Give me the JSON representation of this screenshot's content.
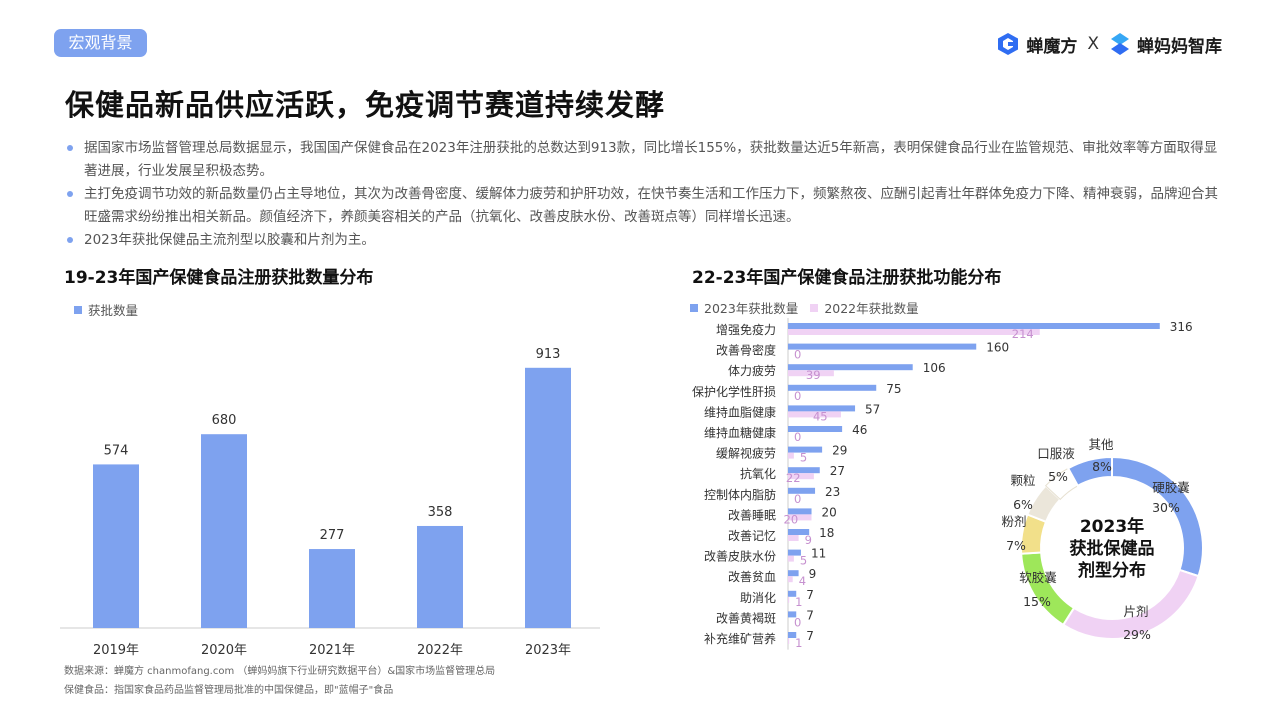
{
  "header": {
    "tag": "宏观背景",
    "logo_left": "蝉魔方",
    "logo_sep": "X",
    "logo_right": "蝉妈妈智库",
    "title": "保健品新品供应活跃，免疫调节赛道持续发酵"
  },
  "bullets": [
    "据国家市场监督管理总局数据显示，我国国产保健食品在2023年注册获批的总数达到913款，同比增长155%，获批数量达近5年新高，表明保健食品行业在监管规范、审批效率等方面取得显著进展，行业发展呈积极态势。",
    "主打免疫调节功效的新品数量仍占主导地位，其次为改善骨密度、缓解体力疲劳和护肝功效，在快节奏生活和工作压力下，频繁熬夜、应酬引起青壮年群体免疫力下降、精神衰弱，品牌迎合其旺盛需求纷纷推出相关新品。颜值经济下，养颜美容相关的产品（抗氧化、改善皮肤水份、改善斑点等）同样增长迅速。",
    "2023年获批保健品主流剂型以胶囊和片剂为主。"
  ],
  "colors": {
    "accent": "#7ea2ef",
    "pink": "#f0d2f4",
    "green": "#9ee75a",
    "yellow": "#f2e08a",
    "beige": "#ebe6da"
  },
  "chart_data": [
    {
      "type": "bar",
      "title": "19-23年国产保健食品注册获批数量分布",
      "categories": [
        "2019年",
        "2020年",
        "2021年",
        "2022年",
        "2023年"
      ],
      "series": [
        {
          "name": "获批数量",
          "values": [
            574,
            680,
            277,
            358,
            913
          ]
        }
      ],
      "ylim": [
        0,
        1000
      ]
    },
    {
      "type": "bar",
      "orientation": "horizontal",
      "title": "22-23年国产保健食品注册获批功能分布",
      "categories": [
        "增强免疫力",
        "改善骨密度",
        "体力疲劳",
        "保护化学性肝损",
        "维持血脂健康",
        "维持血糖健康",
        "缓解视疲劳",
        "抗氧化",
        "控制体内脂肪",
        "改善睡眠",
        "改善记忆",
        "改善皮肤水份",
        "改善贫血",
        "助消化",
        "改善黄褐斑",
        "补充维矿营养"
      ],
      "series": [
        {
          "name": "2023年获批数量",
          "values": [
            316,
            160,
            106,
            75,
            57,
            46,
            29,
            27,
            23,
            20,
            18,
            11,
            9,
            7,
            7,
            7
          ]
        },
        {
          "name": "2022年获批数量",
          "values": [
            214,
            0,
            39,
            0,
            45,
            0,
            5,
            22,
            0,
            20,
            9,
            5,
            4,
            1,
            0,
            1
          ]
        }
      ],
      "xlim": [
        0,
        340
      ]
    },
    {
      "type": "pie",
      "title": "2023年获批保健品剂型分布",
      "labels": [
        "硬胶囊",
        "片剂",
        "软胶囊",
        "粉剂",
        "颗粒",
        "口服液",
        "其他"
      ],
      "values": [
        30,
        29,
        15,
        7,
        6,
        5,
        8
      ],
      "value_labels": [
        "30%",
        "29%",
        "15%",
        "7%",
        "6%",
        "5%",
        "8%"
      ]
    }
  ],
  "notes": [
    "数据来源：蝉魔方 chanmofang.com （蝉妈妈旗下行业研究数据平台）&国家市场监督管理总局",
    "保健食品：指国家食品药品监督管理局批准的中国保健品，即\"蓝帽子\"食品"
  ]
}
